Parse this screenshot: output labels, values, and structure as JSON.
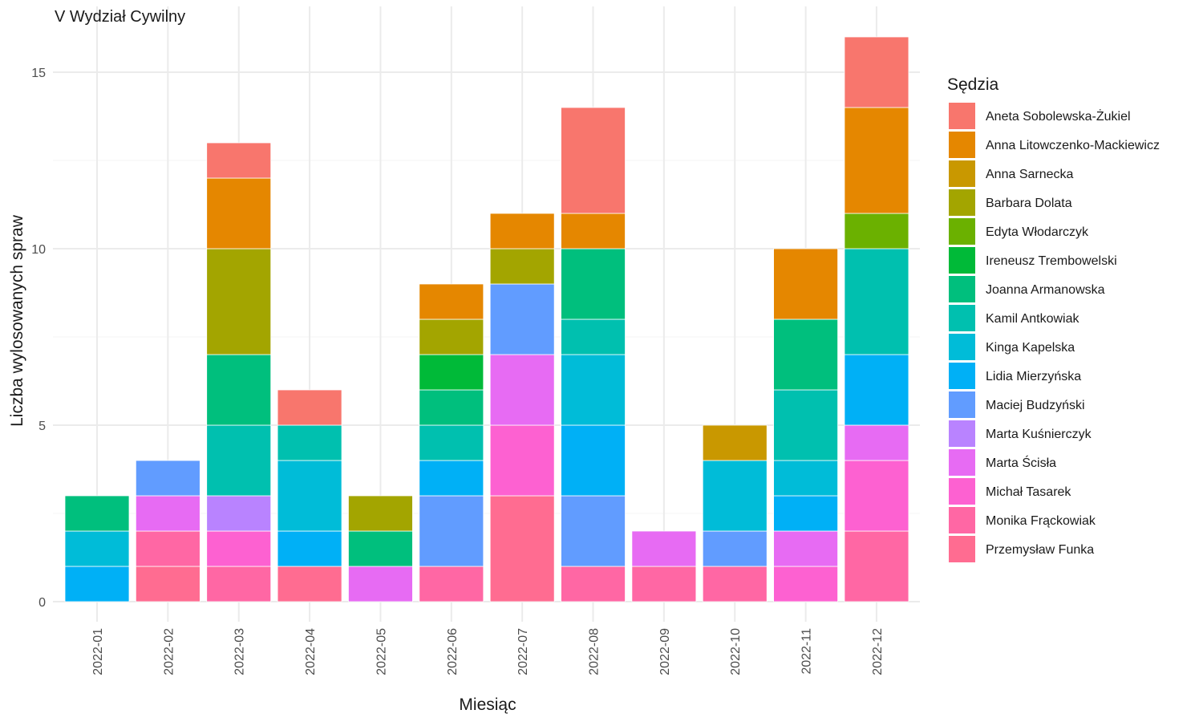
{
  "chart_data": {
    "type": "bar",
    "stacked": true,
    "title": "V Wydział Cywilny",
    "xlabel": "Miesiąc",
    "ylabel": "Liczba wylosowanych spraw",
    "ylim": [
      0,
      16
    ],
    "yticks": [
      0,
      5,
      10,
      15
    ],
    "grid": true,
    "legend_title": "Sędzia",
    "legend_position": "right",
    "categories": [
      "2022-01",
      "2022-02",
      "2022-03",
      "2022-04",
      "2022-05",
      "2022-06",
      "2022-07",
      "2022-08",
      "2022-09",
      "2022-10",
      "2022-11",
      "2022-12"
    ],
    "series": [
      {
        "name": "Aneta Sobolewska-Żukiel",
        "color": "#F8766D",
        "values": [
          0,
          0,
          1,
          1,
          0,
          0,
          0,
          3,
          0,
          0,
          0,
          2
        ]
      },
      {
        "name": "Anna Litowczenko-Mackiewicz",
        "color": "#E58700",
        "values": [
          0,
          0,
          2,
          0,
          0,
          1,
          1,
          1,
          0,
          0,
          2,
          3
        ]
      },
      {
        "name": "Anna Sarnecka",
        "color": "#C99800",
        "values": [
          0,
          0,
          0,
          0,
          0,
          0,
          0,
          0,
          0,
          1,
          0,
          0
        ]
      },
      {
        "name": "Barbara Dolata",
        "color": "#A3A500",
        "values": [
          0,
          0,
          3,
          0,
          1,
          1,
          1,
          0,
          0,
          0,
          0,
          0
        ]
      },
      {
        "name": "Edyta Włodarczyk",
        "color": "#6BB100",
        "values": [
          0,
          0,
          0,
          0,
          0,
          0,
          0,
          0,
          0,
          0,
          0,
          1
        ]
      },
      {
        "name": "Ireneusz Trembowelski",
        "color": "#00BA38",
        "values": [
          0,
          0,
          0,
          0,
          0,
          1,
          0,
          0,
          0,
          0,
          0,
          0
        ]
      },
      {
        "name": "Joanna Armanowska",
        "color": "#00BF7D",
        "values": [
          1,
          0,
          2,
          0,
          1,
          1,
          0,
          2,
          0,
          0,
          2,
          0
        ]
      },
      {
        "name": "Kamil Antkowiak",
        "color": "#00C0AF",
        "values": [
          0,
          0,
          2,
          1,
          0,
          1,
          0,
          1,
          0,
          0,
          2,
          3
        ]
      },
      {
        "name": "Kinga Kapelska",
        "color": "#00BCD8",
        "values": [
          1,
          0,
          0,
          2,
          0,
          0,
          0,
          2,
          0,
          2,
          1,
          0
        ]
      },
      {
        "name": "Lidia Mierzyńska",
        "color": "#00B0F6",
        "values": [
          1,
          0,
          0,
          1,
          0,
          1,
          0,
          2,
          0,
          0,
          1,
          2
        ]
      },
      {
        "name": "Maciej Budzyński",
        "color": "#619CFF",
        "values": [
          0,
          1,
          0,
          0,
          0,
          2,
          2,
          2,
          0,
          1,
          0,
          0
        ]
      },
      {
        "name": "Marta Kuśnierczyk",
        "color": "#B983FF",
        "values": [
          0,
          0,
          1,
          0,
          0,
          0,
          0,
          0,
          0,
          0,
          0,
          0
        ]
      },
      {
        "name": "Marta Ścisła",
        "color": "#E76BF3",
        "values": [
          0,
          1,
          0,
          0,
          1,
          0,
          2,
          0,
          1,
          0,
          1,
          1
        ]
      },
      {
        "name": "Michał Tasarek",
        "color": "#FD61D1",
        "values": [
          0,
          0,
          1,
          0,
          0,
          0,
          2,
          0,
          0,
          0,
          1,
          2
        ]
      },
      {
        "name": "Monika Frąckowiak",
        "color": "#FF67A4",
        "values": [
          0,
          1,
          1,
          0,
          0,
          1,
          0,
          1,
          1,
          1,
          0,
          2
        ]
      },
      {
        "name": "Przemysław Funka",
        "color": "#FF6C91",
        "values": [
          0,
          1,
          0,
          1,
          0,
          0,
          3,
          0,
          0,
          0,
          0,
          0
        ]
      }
    ]
  }
}
